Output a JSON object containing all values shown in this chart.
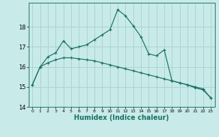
{
  "xlabel": "Humidex (Indice chaleur)",
  "background_color": "#c8eae8",
  "grid_color": "#a8d4d2",
  "line_color": "#1a7068",
  "xlim": [
    -0.5,
    23.5
  ],
  "ylim": [
    14.0,
    19.2
  ],
  "yticks": [
    14,
    15,
    16,
    17,
    18
  ],
  "xticks": [
    0,
    1,
    2,
    3,
    4,
    5,
    6,
    7,
    8,
    9,
    10,
    11,
    12,
    13,
    14,
    15,
    16,
    17,
    18,
    19,
    20,
    21,
    22,
    23
  ],
  "line1_x": [
    0,
    1,
    2,
    3,
    4,
    5,
    6,
    7,
    8,
    9,
    10,
    11,
    12,
    13,
    14,
    15,
    16,
    17,
    18,
    19,
    20,
    21,
    22,
    23
  ],
  "line1_y": [
    15.1,
    16.0,
    16.5,
    16.7,
    17.3,
    16.9,
    17.0,
    17.1,
    17.35,
    17.6,
    17.85,
    18.85,
    18.55,
    18.05,
    17.5,
    16.65,
    16.55,
    16.85,
    15.3,
    15.2,
    15.1,
    14.95,
    14.85,
    14.45
  ],
  "line2_x": [
    0,
    1,
    2,
    3,
    4,
    5,
    6,
    7,
    8,
    9,
    10,
    11,
    12,
    13,
    14,
    15,
    16,
    17,
    18,
    19,
    20,
    21,
    22,
    23
  ],
  "line2_y": [
    15.1,
    16.0,
    16.2,
    16.35,
    16.45,
    16.45,
    16.4,
    16.35,
    16.3,
    16.2,
    16.1,
    16.0,
    15.9,
    15.8,
    15.7,
    15.6,
    15.5,
    15.4,
    15.3,
    15.2,
    15.1,
    15.0,
    14.9,
    14.45
  ],
  "xlabel_fontsize": 7,
  "tick_fontsize": 6
}
